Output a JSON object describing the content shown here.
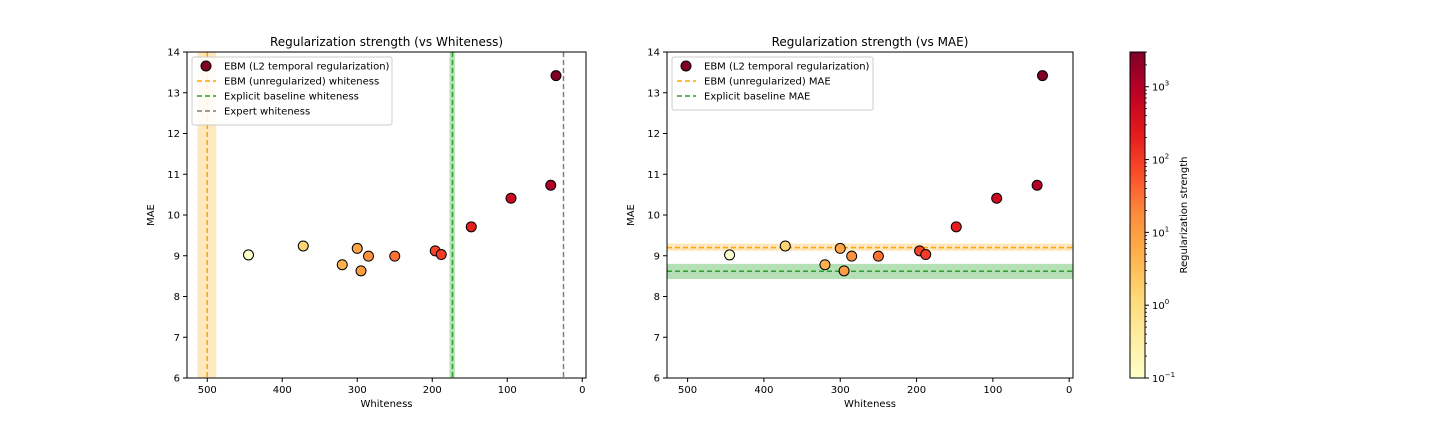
{
  "colors": {
    "ebm_unreg": "#ffa500",
    "ebm_unreg_band": "#ffe4b3",
    "baseline": "#2ca02c",
    "baseline_band": "#a8dba8",
    "expert": "#7f7f7f",
    "marker_edge": "#000000"
  },
  "colorbar": {
    "label": "Regularization strength",
    "scale": "log",
    "range": [
      0.1,
      3000
    ],
    "ticks": [
      {
        "value": 0.1,
        "base": "10",
        "exp": "−1"
      },
      {
        "value": 1,
        "base": "10",
        "exp": "0"
      },
      {
        "value": 10,
        "base": "10",
        "exp": "1"
      },
      {
        "value": 100,
        "base": "10",
        "exp": "2"
      },
      {
        "value": 1000,
        "base": "10",
        "exp": "3"
      }
    ],
    "colormap": "YlOrRd"
  },
  "chart_data": [
    {
      "type": "scatter",
      "title": "Regularization strength (vs Whiteness)",
      "xlabel": "Whiteness",
      "ylabel": "MAE",
      "xlim": [
        527,
        -5
      ],
      "ylim": [
        6,
        14
      ],
      "xticks": [
        500,
        400,
        300,
        200,
        100,
        0
      ],
      "yticks": [
        6,
        7,
        8,
        9,
        10,
        11,
        12,
        13,
        14
      ],
      "series": [
        {
          "name": "EBM (L2 temporal regularization)",
          "points": [
            {
              "x": 445,
              "y": 9.02,
              "c": 0.1
            },
            {
              "x": 372,
              "y": 9.24,
              "c": 1.5
            },
            {
              "x": 320,
              "y": 8.78,
              "c": 5
            },
            {
              "x": 300,
              "y": 9.18,
              "c": 8
            },
            {
              "x": 295,
              "y": 8.63,
              "c": 10
            },
            {
              "x": 285,
              "y": 8.99,
              "c": 15
            },
            {
              "x": 250,
              "y": 8.99,
              "c": 30
            },
            {
              "x": 196,
              "y": 9.12,
              "c": 80
            },
            {
              "x": 188,
              "y": 9.03,
              "c": 100
            },
            {
              "x": 148,
              "y": 9.71,
              "c": 200
            },
            {
              "x": 95,
              "y": 10.41,
              "c": 500
            },
            {
              "x": 42,
              "y": 10.73,
              "c": 1000
            },
            {
              "x": 35,
              "y": 13.42,
              "c": 3000
            }
          ]
        }
      ],
      "reference_lines": [
        {
          "name": "EBM (unregularized) whiteness",
          "orientation": "vertical",
          "value": 500,
          "band": [
            488,
            513
          ],
          "style": "dashed",
          "color": "ebm_unreg"
        },
        {
          "name": "Explicit baseline whiteness",
          "orientation": "vertical",
          "value": 173,
          "band": [
            170,
            177
          ],
          "style": "dashed",
          "color": "baseline"
        },
        {
          "name": "Expert whiteness",
          "orientation": "vertical",
          "value": 25,
          "band": null,
          "style": "dashed",
          "color": "expert"
        }
      ],
      "legend": "upper-left"
    },
    {
      "type": "scatter",
      "title": "Regularization strength (vs MAE)",
      "xlabel": "Whiteness",
      "ylabel": "MAE",
      "xlim": [
        527,
        -5
      ],
      "ylim": [
        6,
        14
      ],
      "xticks": [
        500,
        400,
        300,
        200,
        100,
        0
      ],
      "yticks": [
        6,
        7,
        8,
        9,
        10,
        11,
        12,
        13,
        14
      ],
      "series": [
        {
          "name": "EBM (L2 temporal regularization)",
          "points": [
            {
              "x": 445,
              "y": 9.02,
              "c": 0.1
            },
            {
              "x": 372,
              "y": 9.24,
              "c": 1.5
            },
            {
              "x": 320,
              "y": 8.78,
              "c": 5
            },
            {
              "x": 300,
              "y": 9.18,
              "c": 8
            },
            {
              "x": 295,
              "y": 8.63,
              "c": 10
            },
            {
              "x": 285,
              "y": 8.99,
              "c": 15
            },
            {
              "x": 250,
              "y": 8.99,
              "c": 30
            },
            {
              "x": 196,
              "y": 9.12,
              "c": 80
            },
            {
              "x": 188,
              "y": 9.03,
              "c": 100
            },
            {
              "x": 148,
              "y": 9.71,
              "c": 200
            },
            {
              "x": 95,
              "y": 10.41,
              "c": 500
            },
            {
              "x": 42,
              "y": 10.73,
              "c": 1000
            },
            {
              "x": 35,
              "y": 13.42,
              "c": 3000
            }
          ]
        }
      ],
      "reference_lines": [
        {
          "name": "EBM (unregularized) MAE",
          "orientation": "horizontal",
          "value": 9.2,
          "band": [
            9.12,
            9.3
          ],
          "style": "dashed",
          "color": "ebm_unreg"
        },
        {
          "name": "Explicit baseline MAE",
          "orientation": "horizontal",
          "value": 8.62,
          "band": [
            8.43,
            8.8
          ],
          "style": "dashed",
          "color": "baseline"
        }
      ],
      "legend": "upper-left"
    }
  ]
}
